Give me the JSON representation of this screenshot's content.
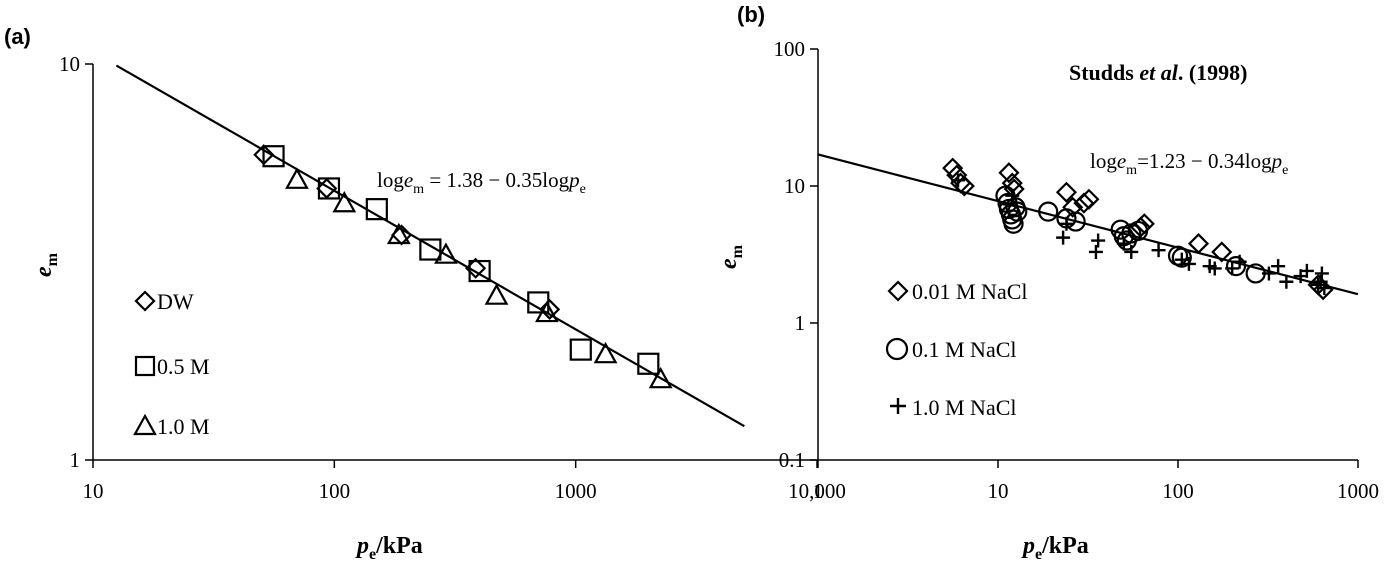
{
  "colors": {
    "ink": "#000000",
    "background": "#ffffff"
  },
  "chart_data": [
    {
      "panel": "(a)",
      "type": "scatter",
      "xscale": "log",
      "yscale": "log",
      "xlim": [
        10,
        10000
      ],
      "ylim": [
        1,
        10
      ],
      "xticks": [
        10,
        100,
        1000,
        10000
      ],
      "xtick_labels": [
        "10",
        "100",
        "1000",
        "10,000"
      ],
      "yticks": [
        1,
        10
      ],
      "ytick_labels": [
        "1",
        "10"
      ],
      "xlabel": {
        "main": "p",
        "sub": "e",
        "rest": "/kPa"
      },
      "ylabel": {
        "main": "e",
        "sub": "m"
      },
      "equation": {
        "a": "log",
        "b": "e",
        "c": "m",
        "d": " = 1.38 − 0.35log",
        "e": "p",
        "f": "e"
      },
      "fit": {
        "intercept": 1.38,
        "slope": -0.35,
        "x_range": [
          12.5,
          5000
        ]
      },
      "legend_position": "left",
      "grid": false,
      "series": [
        {
          "name": "DW",
          "marker": "diamond",
          "points": [
            [
              51,
              5.9
            ],
            [
              93,
              4.85
            ],
            [
              190,
              3.7
            ],
            [
              385,
              3.05
            ],
            [
              780,
              2.4
            ]
          ]
        },
        {
          "name": "0.5 M",
          "marker": "square",
          "points": [
            [
              56,
              5.85
            ],
            [
              95,
              4.85
            ],
            [
              150,
              4.3
            ],
            [
              250,
              3.4
            ],
            [
              400,
              3.0
            ],
            [
              700,
              2.5
            ],
            [
              1050,
              1.9
            ],
            [
              2000,
              1.75
            ]
          ]
        },
        {
          "name": "1.0 M",
          "marker": "triangle",
          "points": [
            [
              70,
              5.1
            ],
            [
              110,
              4.45
            ],
            [
              185,
              3.7
            ],
            [
              290,
              3.3
            ],
            [
              470,
              2.6
            ],
            [
              760,
              2.35
            ],
            [
              1330,
              1.85
            ],
            [
              2250,
              1.6
            ]
          ]
        }
      ]
    },
    {
      "panel": "(b)",
      "type": "scatter",
      "xscale": "log",
      "yscale": "log",
      "xlim": [
        1,
        1000
      ],
      "ylim": [
        0.1,
        100
      ],
      "xticks": [
        1,
        10,
        100,
        1000
      ],
      "xtick_labels": [
        "1",
        "10",
        "100",
        "1000"
      ],
      "yticks": [
        0.1,
        1,
        10,
        100
      ],
      "ytick_labels": [
        "0.1",
        "1",
        "10",
        "100"
      ],
      "xlabel": {
        "main": "p",
        "sub": "e",
        "rest": "/kPa"
      },
      "ylabel": {
        "main": "e",
        "sub": "m"
      },
      "reference": {
        "a": "Studds ",
        "b": "et al",
        "c": ". (1998)"
      },
      "equation": {
        "a": "log",
        "b": "e",
        "c": "m",
        "d": "=1.23 − 0.34log",
        "e": "p",
        "f": "e"
      },
      "fit": {
        "intercept": 1.23,
        "slope": -0.34,
        "x_range": [
          1,
          1000
        ]
      },
      "legend_position": "bottom-left",
      "grid": false,
      "series": [
        {
          "name": "0.01 M NaCl",
          "marker": "diamond",
          "points": [
            [
              5.6,
              13.5
            ],
            [
              5.9,
              12.0
            ],
            [
              6.2,
              10.5
            ],
            [
              6.5,
              10.0
            ],
            [
              11.5,
              12.5
            ],
            [
              12,
              10.5
            ],
            [
              12.3,
              9.5
            ],
            [
              24,
              9.0
            ],
            [
              26,
              7.0
            ],
            [
              30,
              7.5
            ],
            [
              32,
              8.0
            ],
            [
              62,
              5.0
            ],
            [
              65,
              5.3
            ],
            [
              130,
              3.8
            ],
            [
              175,
              3.3
            ],
            [
              600,
              1.9
            ],
            [
              640,
              1.75
            ]
          ]
        },
        {
          "name": "0.1 M NaCl",
          "marker": "circle",
          "points": [
            [
              11,
              8.5
            ],
            [
              11.3,
              7.5
            ],
            [
              11.5,
              6.8
            ],
            [
              11.8,
              6.2
            ],
            [
              12,
              5.7
            ],
            [
              12.2,
              5.3
            ],
            [
              12.5,
              7.0
            ],
            [
              12.8,
              6.5
            ],
            [
              19,
              6.5
            ],
            [
              24,
              5.8
            ],
            [
              27,
              5.5
            ],
            [
              48,
              4.8
            ],
            [
              50,
              4.3
            ],
            [
              52,
              4.0
            ],
            [
              55,
              4.5
            ],
            [
              60,
              4.7
            ],
            [
              100,
              3.1
            ],
            [
              105,
              3.0
            ],
            [
              210,
              2.6
            ],
            [
              270,
              2.3
            ]
          ]
        },
        {
          "name": "1.0 M NaCl",
          "marker": "plus",
          "points": [
            [
              6,
              11.0
            ],
            [
              12,
              8.5
            ],
            [
              23,
              4.2
            ],
            [
              24,
              5.3
            ],
            [
              35,
              3.3
            ],
            [
              36,
              4.0
            ],
            [
              50,
              3.8
            ],
            [
              55,
              3.3
            ],
            [
              78,
              3.4
            ],
            [
              105,
              2.9
            ],
            [
              115,
              2.7
            ],
            [
              150,
              2.6
            ],
            [
              160,
              2.5
            ],
            [
              200,
              2.5
            ],
            [
              220,
              2.8
            ],
            [
              320,
              2.3
            ],
            [
              360,
              2.6
            ],
            [
              400,
              2.0
            ],
            [
              480,
              2.2
            ],
            [
              520,
              2.4
            ],
            [
              600,
              1.9
            ],
            [
              620,
              2.0
            ],
            [
              630,
              2.3
            ],
            [
              650,
              1.8
            ]
          ]
        }
      ]
    }
  ]
}
